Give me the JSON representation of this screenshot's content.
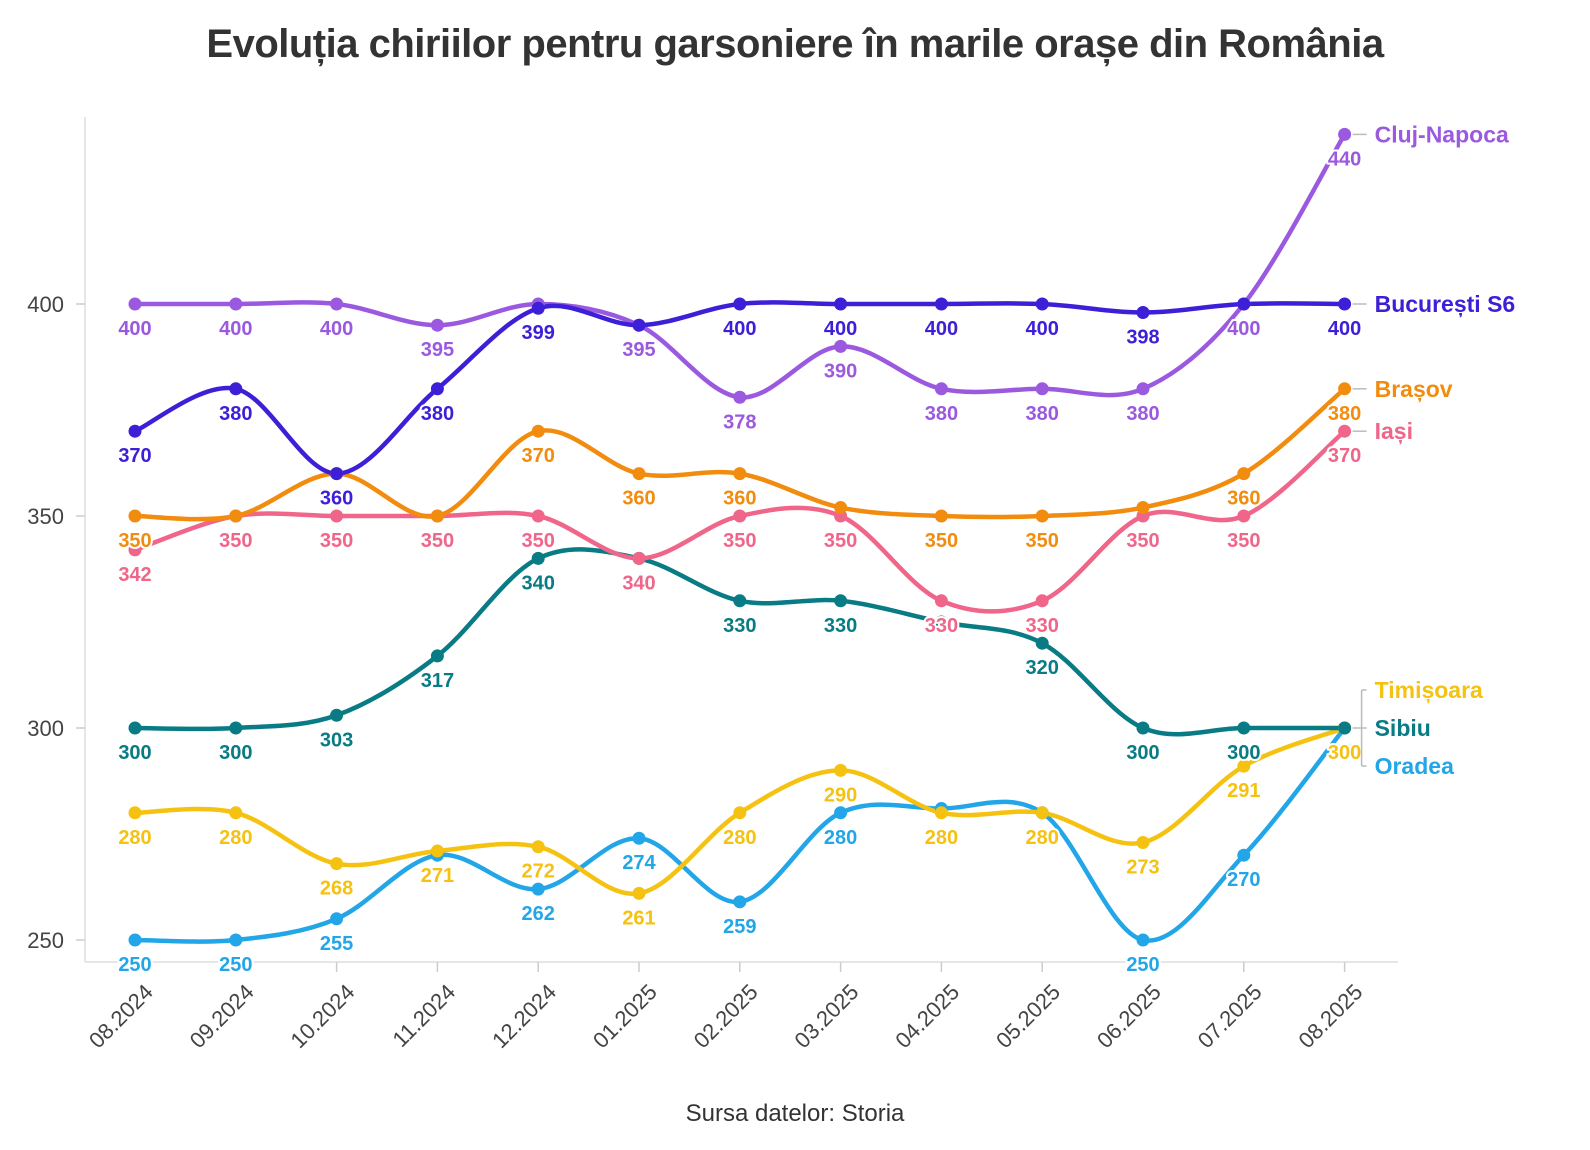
{
  "chart_data": {
    "type": "line",
    "title": "Evoluția chiriilor pentru garsoniere în marile orașe din România",
    "source": "Sursa datelor: Storia",
    "xlabel": "",
    "ylabel": "",
    "ylim": [
      250,
      440
    ],
    "yticks": [
      250,
      300,
      350,
      400
    ],
    "categories": [
      "08.2024",
      "09.2024",
      "10.2024",
      "11.2024",
      "12.2024",
      "01.2025",
      "02.2025",
      "03.2025",
      "04.2025",
      "05.2025",
      "06.2025",
      "07.2025",
      "08.2025"
    ],
    "grid": false,
    "legend": "direct labels at right end of lines",
    "series": [
      {
        "name": "Cluj-Napoca",
        "color": "#9b59e0",
        "values": [
          400,
          400,
          400,
          395,
          400,
          395,
          378,
          390,
          380,
          380,
          380,
          400,
          440
        ]
      },
      {
        "name": "București S6",
        "color": "#3d1fd8",
        "values": [
          370,
          380,
          360,
          380,
          399,
          395,
          400,
          400,
          400,
          400,
          398,
          400,
          400
        ]
      },
      {
        "name": "Brașov",
        "color": "#f28c0f",
        "values": [
          350,
          350,
          360,
          350,
          370,
          360,
          360,
          352,
          350,
          350,
          352,
          360,
          380
        ]
      },
      {
        "name": "Iași",
        "color": "#f0668a",
        "values": [
          342,
          350,
          350,
          350,
          350,
          340,
          350,
          350,
          330,
          330,
          350,
          350,
          370
        ]
      },
      {
        "name": "Sibiu",
        "color": "#087b85",
        "values": [
          300,
          300,
          303,
          317,
          340,
          340,
          330,
          330,
          325,
          320,
          300,
          300,
          300
        ]
      },
      {
        "name": "Timișoara",
        "color": "#f5c211",
        "values": [
          280,
          280,
          268,
          271,
          272,
          261,
          280,
          290,
          280,
          280,
          273,
          291,
          300
        ]
      },
      {
        "name": "Oradea",
        "color": "#22a6e8",
        "values": [
          250,
          250,
          255,
          270,
          262,
          274,
          259,
          280,
          281,
          280,
          250,
          270,
          300
        ]
      }
    ],
    "data_labels": {
      "Cluj-Napoca": [
        "400",
        "400",
        "400",
        "395",
        "",
        "395",
        "378",
        "390",
        "380",
        "380",
        "380",
        "400",
        "440"
      ],
      "București S6": [
        "370",
        "380",
        "360",
        "380",
        "399",
        "",
        "400",
        "400",
        "400",
        "400",
        "398",
        "",
        "400"
      ],
      "Brașov": [
        "350",
        "",
        "",
        "",
        "370",
        "360",
        "360",
        "",
        "350",
        "350",
        "",
        "360",
        "380"
      ],
      "Iași": [
        "342",
        "350",
        "350",
        "350",
        "350",
        "340",
        "350",
        "350",
        "330",
        "330",
        "350",
        "350",
        "370"
      ],
      "Sibiu": [
        "300",
        "300",
        "303",
        "317",
        "340",
        "",
        "330",
        "330",
        "",
        "320",
        "300",
        "300",
        ""
      ],
      "Timișoara": [
        "280",
        "280",
        "268",
        "271",
        "272",
        "261",
        "280",
        "290",
        "280",
        "280",
        "273",
        "291",
        "300"
      ],
      "Oradea": [
        "250",
        "250",
        "255",
        "",
        "262",
        "274",
        "259",
        "280",
        "",
        "",
        "250",
        "270",
        ""
      ]
    }
  }
}
